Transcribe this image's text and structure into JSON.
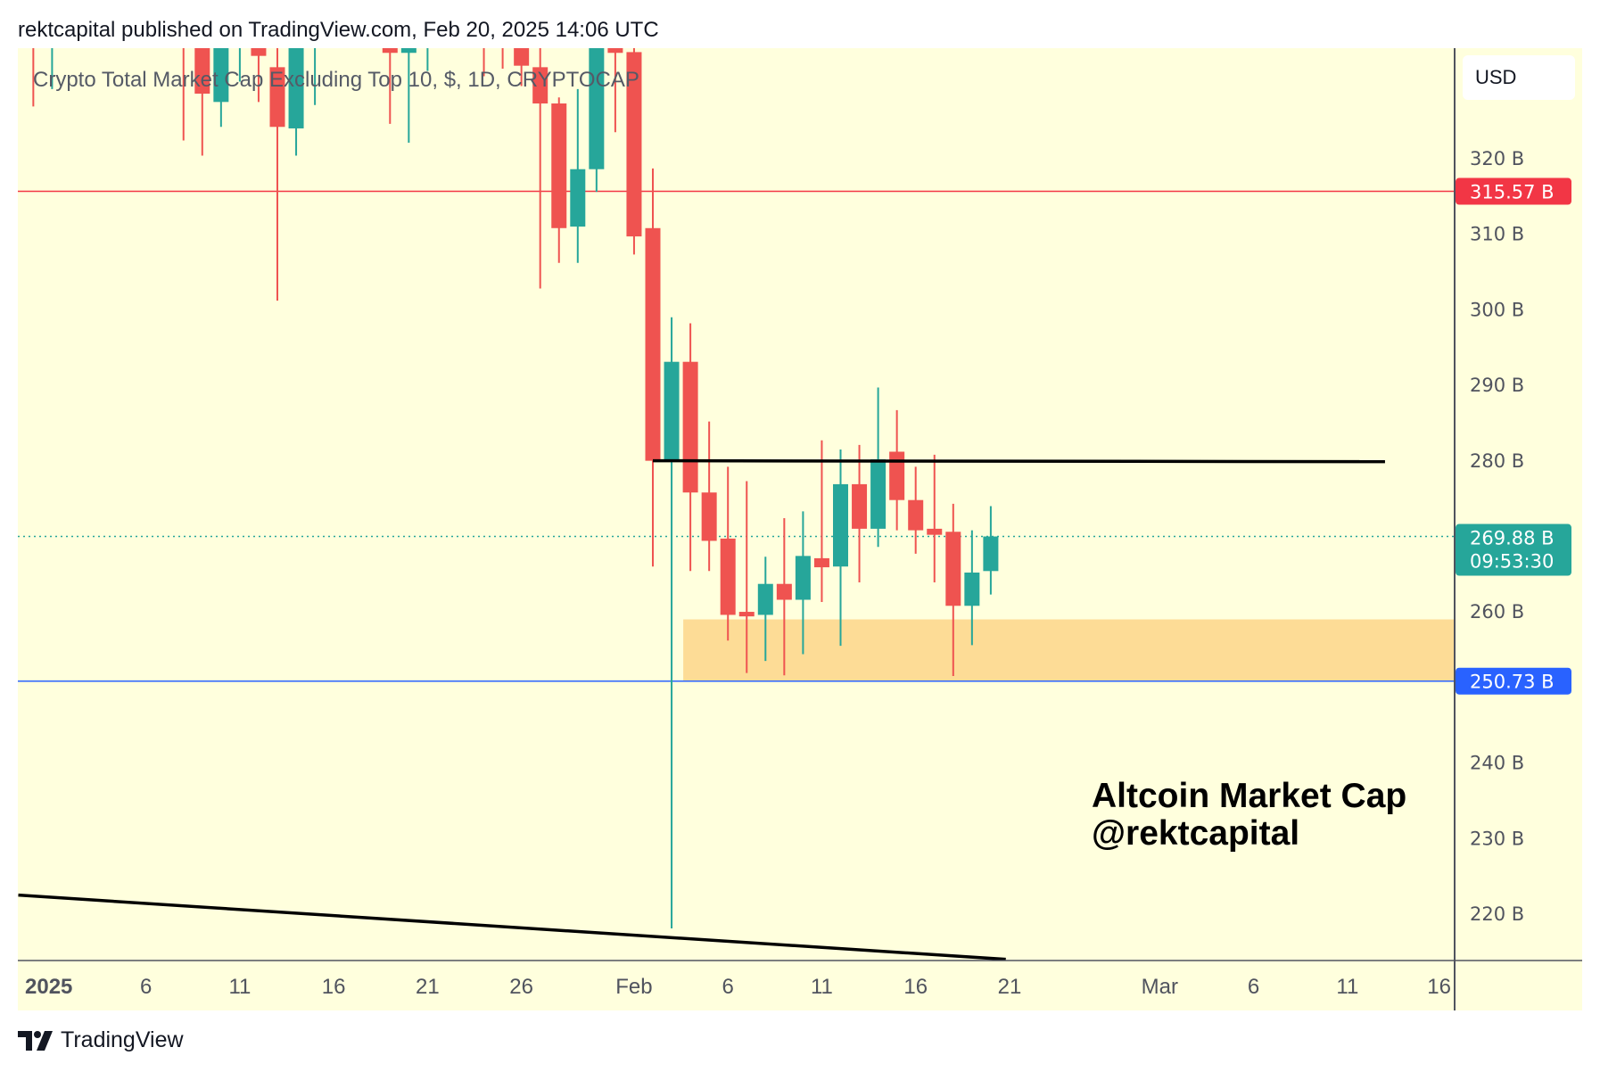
{
  "header": {
    "published": "rektcapital published on TradingView.com, Feb 20, 2025 14:06 UTC"
  },
  "symbol_title": "Crypto Total Market Cap Excluding Top 10, $, 1D, CRYPTOCAP",
  "currency": "USD",
  "watermark": {
    "line1": "Altcoin Market Cap",
    "line2": "@rektcapital"
  },
  "footer": {
    "brand": "TradingView"
  },
  "colors": {
    "background": "#ffffdd",
    "up": "#26a69a",
    "down": "#ef5350",
    "red_line": "#f23645",
    "blue_line": "#2962ff",
    "zone": "#fddc96"
  },
  "chart_data": {
    "type": "candlestick",
    "title": "Crypto Total Market Cap Excluding Top 10, $, 1D, CRYPTOCAP",
    "x_unit": "days since 2025-01-01",
    "ylim": [
      213,
      334.6
    ],
    "xlim": [
      -2,
      75
    ],
    "y_ticks": [
      {
        "value": 320,
        "label": "320 B"
      },
      {
        "value": 310,
        "label": "310 B"
      },
      {
        "value": 300,
        "label": "300 B"
      },
      {
        "value": 290,
        "label": "290 B"
      },
      {
        "value": 280,
        "label": "280 B"
      },
      {
        "value": 260,
        "label": "260 B"
      },
      {
        "value": 240,
        "label": "240 B"
      },
      {
        "value": 230,
        "label": "230 B"
      },
      {
        "value": 220,
        "label": "220 B"
      }
    ],
    "x_ticks": [
      {
        "day": 0,
        "label": "2025",
        "bold": true
      },
      {
        "day": 5,
        "label": "6"
      },
      {
        "day": 10,
        "label": "11"
      },
      {
        "day": 15,
        "label": "16"
      },
      {
        "day": 20,
        "label": "21"
      },
      {
        "day": 25,
        "label": "26"
      },
      {
        "day": 31,
        "label": "Feb"
      },
      {
        "day": 36,
        "label": "6"
      },
      {
        "day": 41,
        "label": "11"
      },
      {
        "day": 46,
        "label": "16"
      },
      {
        "day": 51,
        "label": "21"
      },
      {
        "day": 59,
        "label": "Mar"
      },
      {
        "day": 64,
        "label": "6"
      },
      {
        "day": 69,
        "label": "11"
      },
      {
        "day": 74,
        "label": "16"
      }
    ],
    "candles_columns": [
      "day",
      "open",
      "high",
      "low",
      "close"
    ],
    "candles": [
      [
        -1,
        338,
        340,
        326.8,
        336
      ],
      [
        0,
        336,
        340,
        329.1,
        338
      ],
      [
        7,
        338,
        340,
        322.3,
        336
      ],
      [
        8,
        336,
        338,
        320.3,
        328.5
      ],
      [
        9,
        327.4,
        338,
        324.1,
        336
      ],
      [
        10,
        336,
        340,
        330.1,
        338
      ],
      [
        11,
        336,
        338,
        327.4,
        333.5
      ],
      [
        12,
        332,
        336,
        301.1,
        324.1
      ],
      [
        13,
        323.9,
        337,
        320.3,
        336
      ],
      [
        14,
        336,
        340,
        327.0,
        338
      ],
      [
        18,
        336,
        338,
        324.5,
        333.9
      ],
      [
        19,
        333.9,
        338,
        322.0,
        336
      ],
      [
        20,
        336,
        339,
        331.5,
        338
      ],
      [
        23,
        338,
        340,
        330.8,
        336
      ],
      [
        24,
        338,
        340,
        331.8,
        336
      ],
      [
        25,
        336,
        338,
        329.5,
        332.2
      ],
      [
        26,
        332.0,
        336,
        302.7,
        327.2
      ],
      [
        27,
        327.2,
        328,
        306.1,
        310.7
      ],
      [
        28,
        310.9,
        329.1,
        306.1,
        318.5
      ],
      [
        29,
        318.5,
        337,
        315.5,
        336
      ],
      [
        30,
        336,
        337,
        323.4,
        333.9
      ],
      [
        31,
        334,
        336,
        307.2,
        309.6
      ],
      [
        32,
        310.7,
        318.6,
        265.9,
        279.9
      ],
      [
        33,
        279.9,
        298.9,
        218.0,
        293.0
      ],
      [
        34,
        293.0,
        298.1,
        265.3,
        275.7
      ],
      [
        35,
        275.7,
        285.1,
        265.3,
        269.3
      ],
      [
        36,
        269.6,
        279.1,
        256.1,
        259.5
      ],
      [
        37,
        259.9,
        277.2,
        251.8,
        259.3
      ],
      [
        38,
        259.5,
        267.2,
        253.4,
        263.6
      ],
      [
        39,
        263.6,
        272.3,
        251.5,
        261.5
      ],
      [
        40,
        261.5,
        273.2,
        254.3,
        267.3
      ],
      [
        41,
        267.0,
        282.6,
        261.2,
        265.8
      ],
      [
        42,
        265.9,
        281.4,
        255.4,
        276.8
      ],
      [
        43,
        276.8,
        282.0,
        263.8,
        270.9
      ],
      [
        44,
        270.9,
        289.6,
        268.5,
        280.1
      ],
      [
        45,
        281.1,
        286.6,
        270.7,
        274.7
      ],
      [
        46,
        274.7,
        279.1,
        267.6,
        270.7
      ],
      [
        47,
        270.9,
        280.7,
        263.8,
        270.1
      ],
      [
        48,
        270.5,
        274.2,
        251.4,
        260.7
      ],
      [
        49,
        260.7,
        270.7,
        255.5,
        265.1
      ],
      [
        50,
        265.3,
        273.9,
        262.2,
        269.88
      ]
    ],
    "price_labels": [
      {
        "value": 315.57,
        "text": "315.57 B",
        "color": "#f23645"
      },
      {
        "value": 250.73,
        "text": "250.73 B",
        "color": "#2962ff"
      },
      {
        "value": 269.88,
        "text": "269.88 B",
        "sub": "09:53:30",
        "color": "#26a69a"
      }
    ],
    "horizontal_lines": [
      {
        "value": 315.57,
        "color": "#f23645"
      },
      {
        "value": 250.73,
        "color": "#2962ff"
      }
    ],
    "resistance_line": {
      "from_day": 32,
      "to_day": 71,
      "value": 279.9
    },
    "support_zone": {
      "from_day": 34,
      "low": 250.73,
      "high": 258.9
    },
    "trendline": {
      "from": [
        -1.8,
        222.4
      ],
      "to": [
        50.8,
        213.9
      ]
    }
  }
}
